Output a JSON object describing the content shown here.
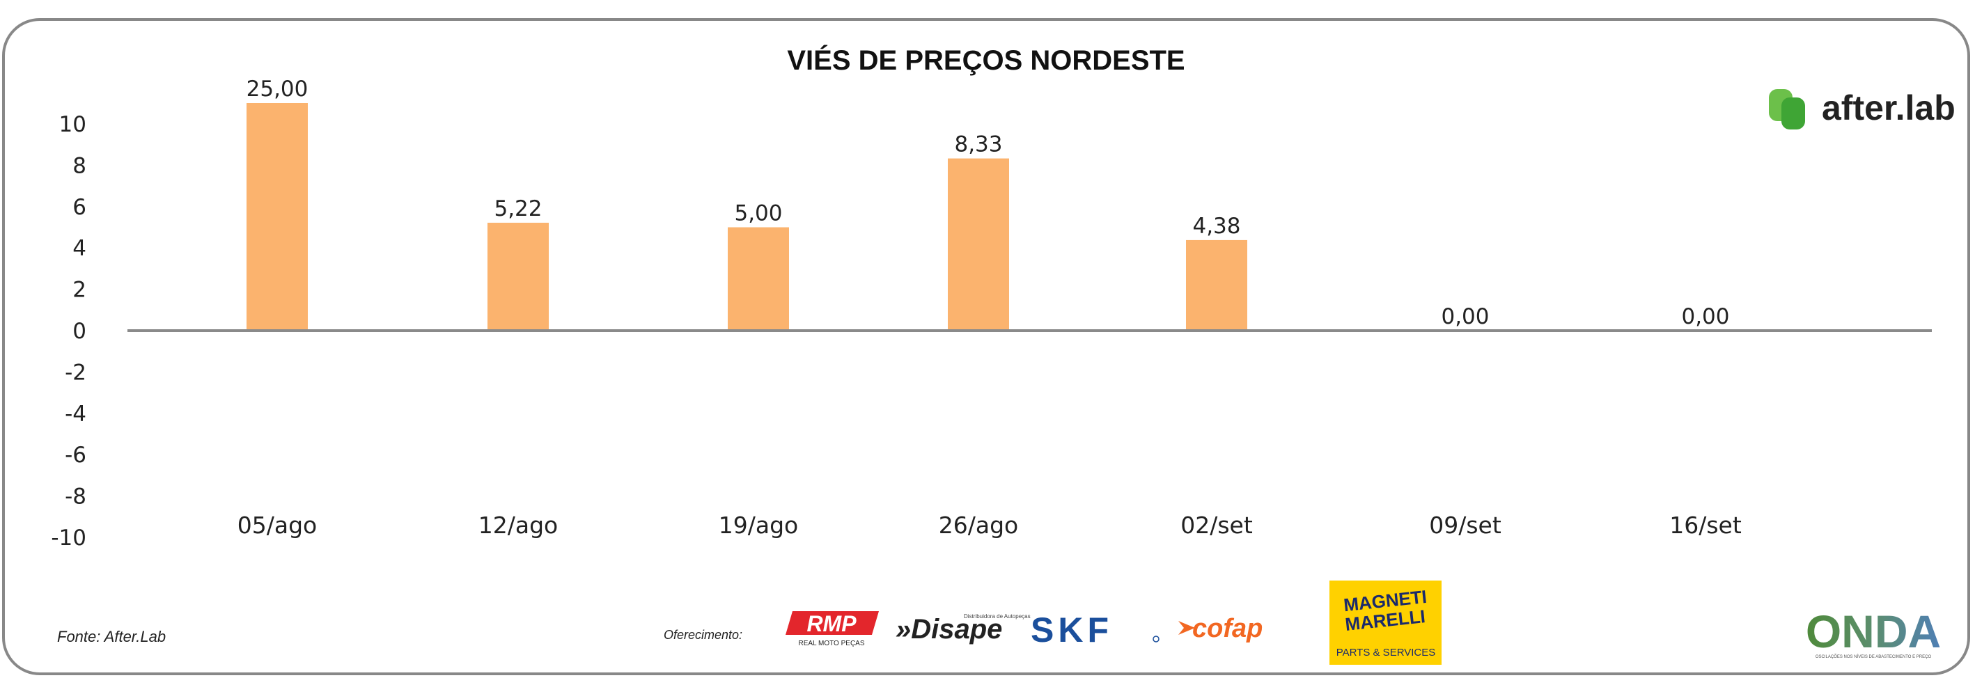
{
  "chart_data": {
    "type": "bar",
    "title": "VIÉS DE PREÇOS NORDESTE",
    "xlabel": "",
    "ylabel": "",
    "categories": [
      "05/ago",
      "12/ago",
      "19/ago",
      "26/ago",
      "02/set",
      "09/set",
      "16/set"
    ],
    "values": [
      25.0,
      5.22,
      5.0,
      8.33,
      4.38,
      0.0,
      0.0
    ],
    "data_labels": [
      "25,00",
      "5,22",
      "5,00",
      "8,33",
      "4,38",
      "0,00",
      "0,00"
    ],
    "ylim": [
      -10,
      10
    ],
    "yticks": [
      10,
      8,
      6,
      4,
      2,
      0,
      -2,
      -4,
      -6,
      -8,
      -10
    ],
    "ytick_labels": [
      "10",
      "8",
      "6",
      "4",
      "2",
      "0",
      "-2",
      "-4",
      "-6",
      "-8",
      "-10"
    ],
    "grid": false,
    "bar_color": "#FBB36E",
    "clipped_at_top": true
  },
  "footer": {
    "source": "Fonte: After.Lab",
    "sponsor_label": "Oferecimento:"
  },
  "logos": {
    "afterlab": {
      "text": "after.lab",
      "icon": "afterlab-logo-icon",
      "color": "#6CC04A"
    },
    "rmp": {
      "text": "RMP",
      "subtext": "REAL MOTO PEÇAS",
      "color": "#E3262C"
    },
    "disape": {
      "text": "»Disape",
      "subtext": "Distribuidora de Autopeças"
    },
    "skf": {
      "text": "SKF",
      "color": "#1B4F9C"
    },
    "cofap": {
      "text": "cofap",
      "color": "#F26722"
    },
    "magneti": {
      "line1": "MAGNETI",
      "line2": "MARELLI",
      "subtext": "PARTS & SERVICES",
      "color": "#FFD100"
    },
    "onda": {
      "text": "ONDA",
      "subtext": "OSCILAÇÕES NOS NÍVEIS DE ABASTECIMENTO E PREÇO"
    }
  }
}
